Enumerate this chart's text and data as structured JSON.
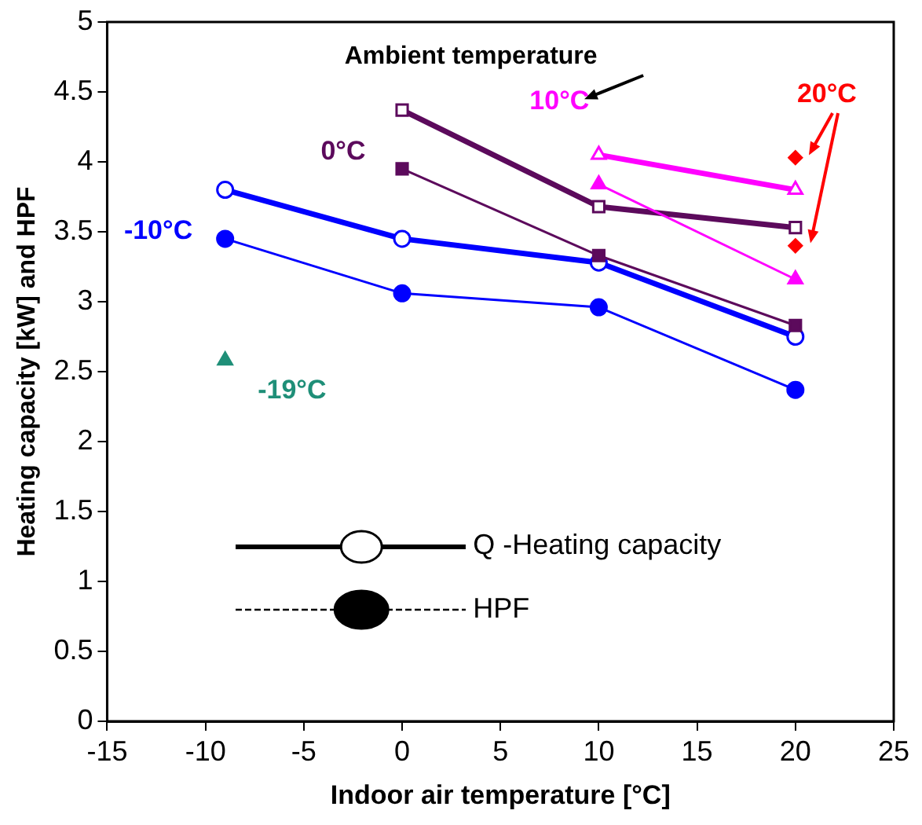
{
  "chart_data": {
    "type": "line",
    "xlabel": "Indoor air temperature [°C]",
    "ylabel": "Heating capacity [kW] and HPF",
    "xlim": [
      -15,
      25
    ],
    "xticks": [
      -15,
      -10,
      -5,
      0,
      5,
      10,
      15,
      20,
      25
    ],
    "ylim": [
      0,
      5
    ],
    "yticks": [
      0,
      0.5,
      1,
      1.5,
      2,
      2.5,
      3,
      3.5,
      4,
      4.5,
      5
    ],
    "grid": false,
    "legend": false,
    "series": [
      {
        "name": "-10°C",
        "color": "#0000ff",
        "marker": "circle",
        "x": [
          -9,
          0,
          10,
          20
        ],
        "values": [
          3.8,
          3.45,
          3.28,
          2.75
        ]
      },
      {
        "color": "#0000ff",
        "marker": "circle",
        "x": [
          -9,
          0,
          10,
          20
        ],
        "values": [
          3.45,
          3.06,
          2.96,
          2.37
        ]
      },
      {
        "name": "0°C",
        "color": "#5c0a5c",
        "marker": "square",
        "x": [
          0,
          10,
          20
        ],
        "values": [
          4.37,
          3.68,
          3.53
        ]
      },
      {
        "color": "#5c0a5c",
        "marker": "square",
        "x": [
          0,
          10,
          20
        ],
        "values": [
          3.95,
          3.33,
          2.83
        ]
      },
      {
        "name": "10°C",
        "color": "#ff00ff",
        "marker": "triangle",
        "x": [
          10,
          20
        ],
        "values": [
          4.05,
          3.8
        ]
      },
      {
        "color": "#ff00ff",
        "marker": "triangle",
        "x": [
          10,
          20
        ],
        "values": [
          3.84,
          3.16
        ]
      },
      {
        "name": "20°C",
        "type": "scatter",
        "color": "#ff0000",
        "marker": "diamond",
        "x": [
          20,
          20
        ],
        "values": [
          4.03,
          3.4
        ]
      },
      {
        "name": "-19°C",
        "type": "scatter",
        "color": "#1f8f78",
        "marker": "triangle",
        "x": [
          -9
        ],
        "values": [
          2.58
        ]
      }
    ],
    "annotations": [
      "Ambient temperature",
      "Q -Heating capacity",
      "HPF"
    ]
  }
}
